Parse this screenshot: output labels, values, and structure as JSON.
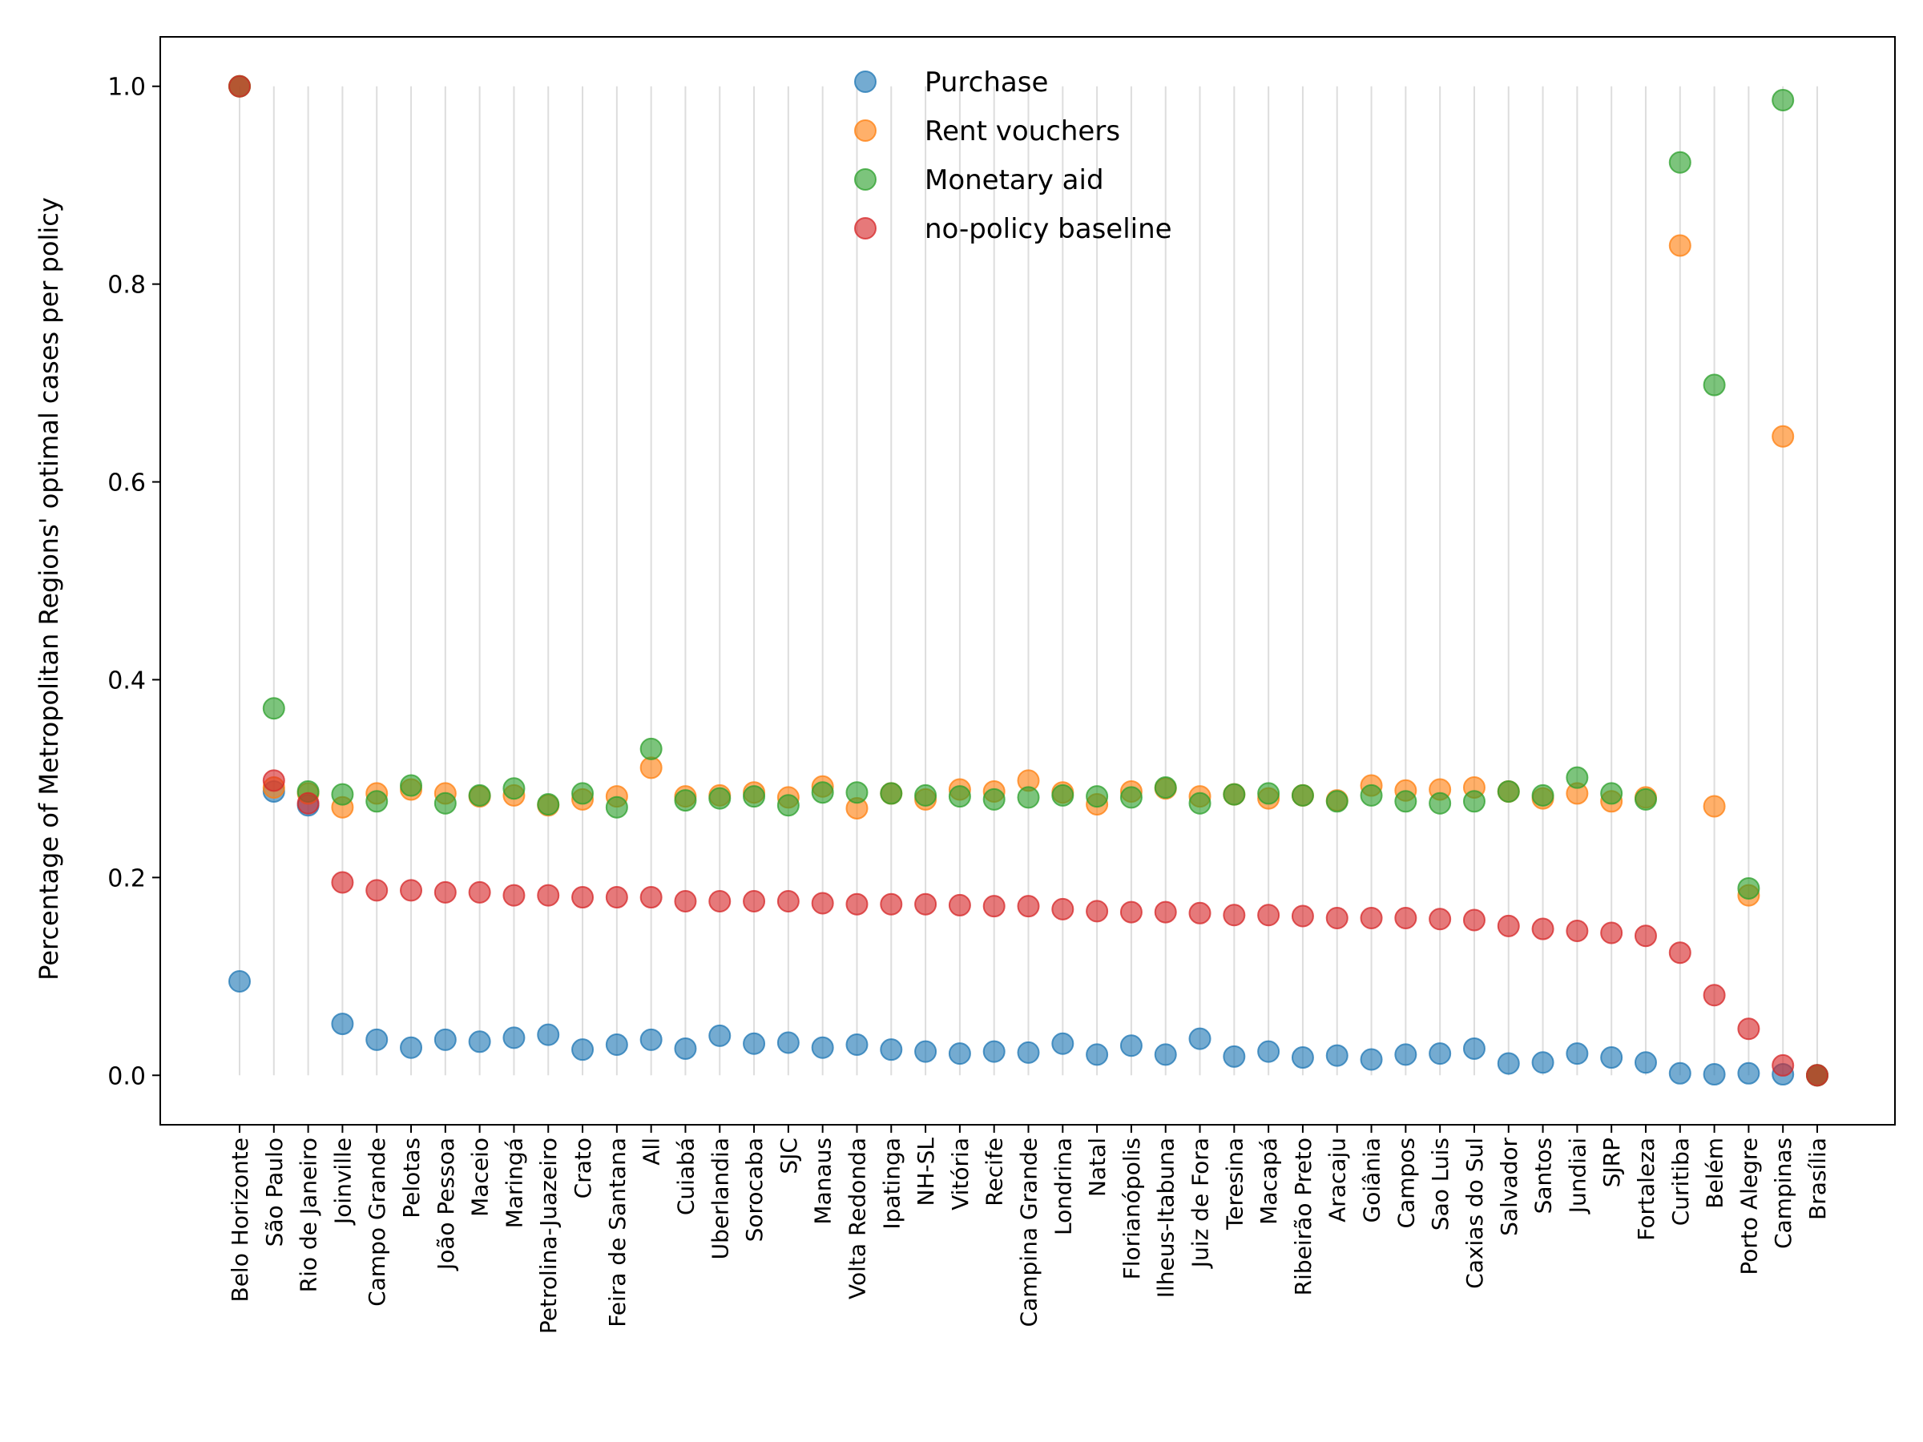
{
  "chart_data": {
    "type": "scatter",
    "title": "",
    "xlabel": "",
    "ylabel": "Percentage of Metropolitan Regions' optimal cases per policy",
    "ylim": [
      -0.05,
      1.05
    ],
    "yticks": [
      0.0,
      0.2,
      0.4,
      0.6,
      0.8,
      1.0
    ],
    "ytick_labels": [
      "0.0",
      "0.2",
      "0.4",
      "0.6",
      "0.8",
      "1.0"
    ],
    "grid": "vertical lines at each category",
    "legend_position": "upper-center",
    "categories": [
      "Belo Horizonte",
      "São Paulo",
      "Rio de Janeiro",
      "Joinville",
      "Campo Grande",
      "Pelotas",
      "João Pessoa",
      "Maceio",
      "Maringá",
      "Petrolina-Juazeiro",
      "Crato",
      "Feira de Santana",
      "All",
      "Cuiabá",
      "Uberlandia",
      "Sorocaba",
      "SJC",
      "Manaus",
      "Volta Redonda",
      "Ipatinga",
      "NH-SL",
      "Vitória",
      "Recife",
      "Campina Grande",
      "Londrina",
      "Natal",
      "Florianópolis",
      "Ilheus-Itabuna",
      "Juiz de Fora",
      "Teresina",
      "Macapá",
      "Ribeirão Preto",
      "Aracaju",
      "Goiânia",
      "Campos",
      "Sao Luis",
      "Caxias do Sul",
      "Salvador",
      "Santos",
      "Jundiai",
      "SJRP",
      "Fortaleza",
      "Curitiba",
      "Belém",
      "Porto Alegre",
      "Campinas",
      "Brasília"
    ],
    "series": [
      {
        "name": "Purchase",
        "color": "#1f77b4",
        "values": [
          0.095,
          0.287,
          0.273,
          0.052,
          0.036,
          0.028,
          0.036,
          0.034,
          0.038,
          0.041,
          0.026,
          0.031,
          0.036,
          0.027,
          0.04,
          0.032,
          0.033,
          0.028,
          0.031,
          0.026,
          0.024,
          0.022,
          0.024,
          0.023,
          0.032,
          0.021,
          0.03,
          0.021,
          0.037,
          0.019,
          0.024,
          0.018,
          0.02,
          0.016,
          0.021,
          0.022,
          0.027,
          0.012,
          0.013,
          0.022,
          0.018,
          0.013,
          0.002,
          0.001,
          0.002,
          0.001,
          0.0
        ]
      },
      {
        "name": "Rent vouchers",
        "color": "#ff7f0e",
        "values": [
          1.0,
          0.291,
          0.285,
          0.271,
          0.285,
          0.289,
          0.285,
          0.282,
          0.283,
          0.273,
          0.279,
          0.282,
          0.311,
          0.282,
          0.283,
          0.286,
          0.281,
          0.292,
          0.27,
          0.285,
          0.279,
          0.289,
          0.287,
          0.298,
          0.286,
          0.274,
          0.287,
          0.29,
          0.282,
          0.284,
          0.28,
          0.283,
          0.278,
          0.293,
          0.288,
          0.289,
          0.291,
          0.287,
          0.28,
          0.285,
          0.277,
          0.281,
          0.839,
          0.272,
          0.182,
          0.646,
          0.0
        ]
      },
      {
        "name": "Monetary aid",
        "color": "#2ca02c",
        "values": [
          1.0,
          0.371,
          0.287,
          0.284,
          0.277,
          0.293,
          0.275,
          0.283,
          0.29,
          0.274,
          0.285,
          0.271,
          0.33,
          0.278,
          0.28,
          0.282,
          0.273,
          0.286,
          0.286,
          0.285,
          0.283,
          0.282,
          0.279,
          0.281,
          0.283,
          0.282,
          0.281,
          0.291,
          0.275,
          0.284,
          0.285,
          0.283,
          0.277,
          0.283,
          0.277,
          0.275,
          0.277,
          0.287,
          0.283,
          0.301,
          0.285,
          0.279,
          0.923,
          0.698,
          0.189,
          0.986,
          0.0
        ]
      },
      {
        "name": "no-policy baseline",
        "color": "#d62728",
        "values": [
          1.0,
          0.298,
          0.275,
          0.195,
          0.187,
          0.187,
          0.185,
          0.185,
          0.182,
          0.182,
          0.18,
          0.18,
          0.18,
          0.176,
          0.176,
          0.176,
          0.176,
          0.174,
          0.173,
          0.173,
          0.173,
          0.172,
          0.171,
          0.171,
          0.168,
          0.166,
          0.165,
          0.165,
          0.164,
          0.162,
          0.162,
          0.161,
          0.159,
          0.159,
          0.159,
          0.158,
          0.157,
          0.151,
          0.148,
          0.146,
          0.144,
          0.141,
          0.124,
          0.081,
          0.047,
          0.01,
          0.0
        ]
      }
    ]
  }
}
